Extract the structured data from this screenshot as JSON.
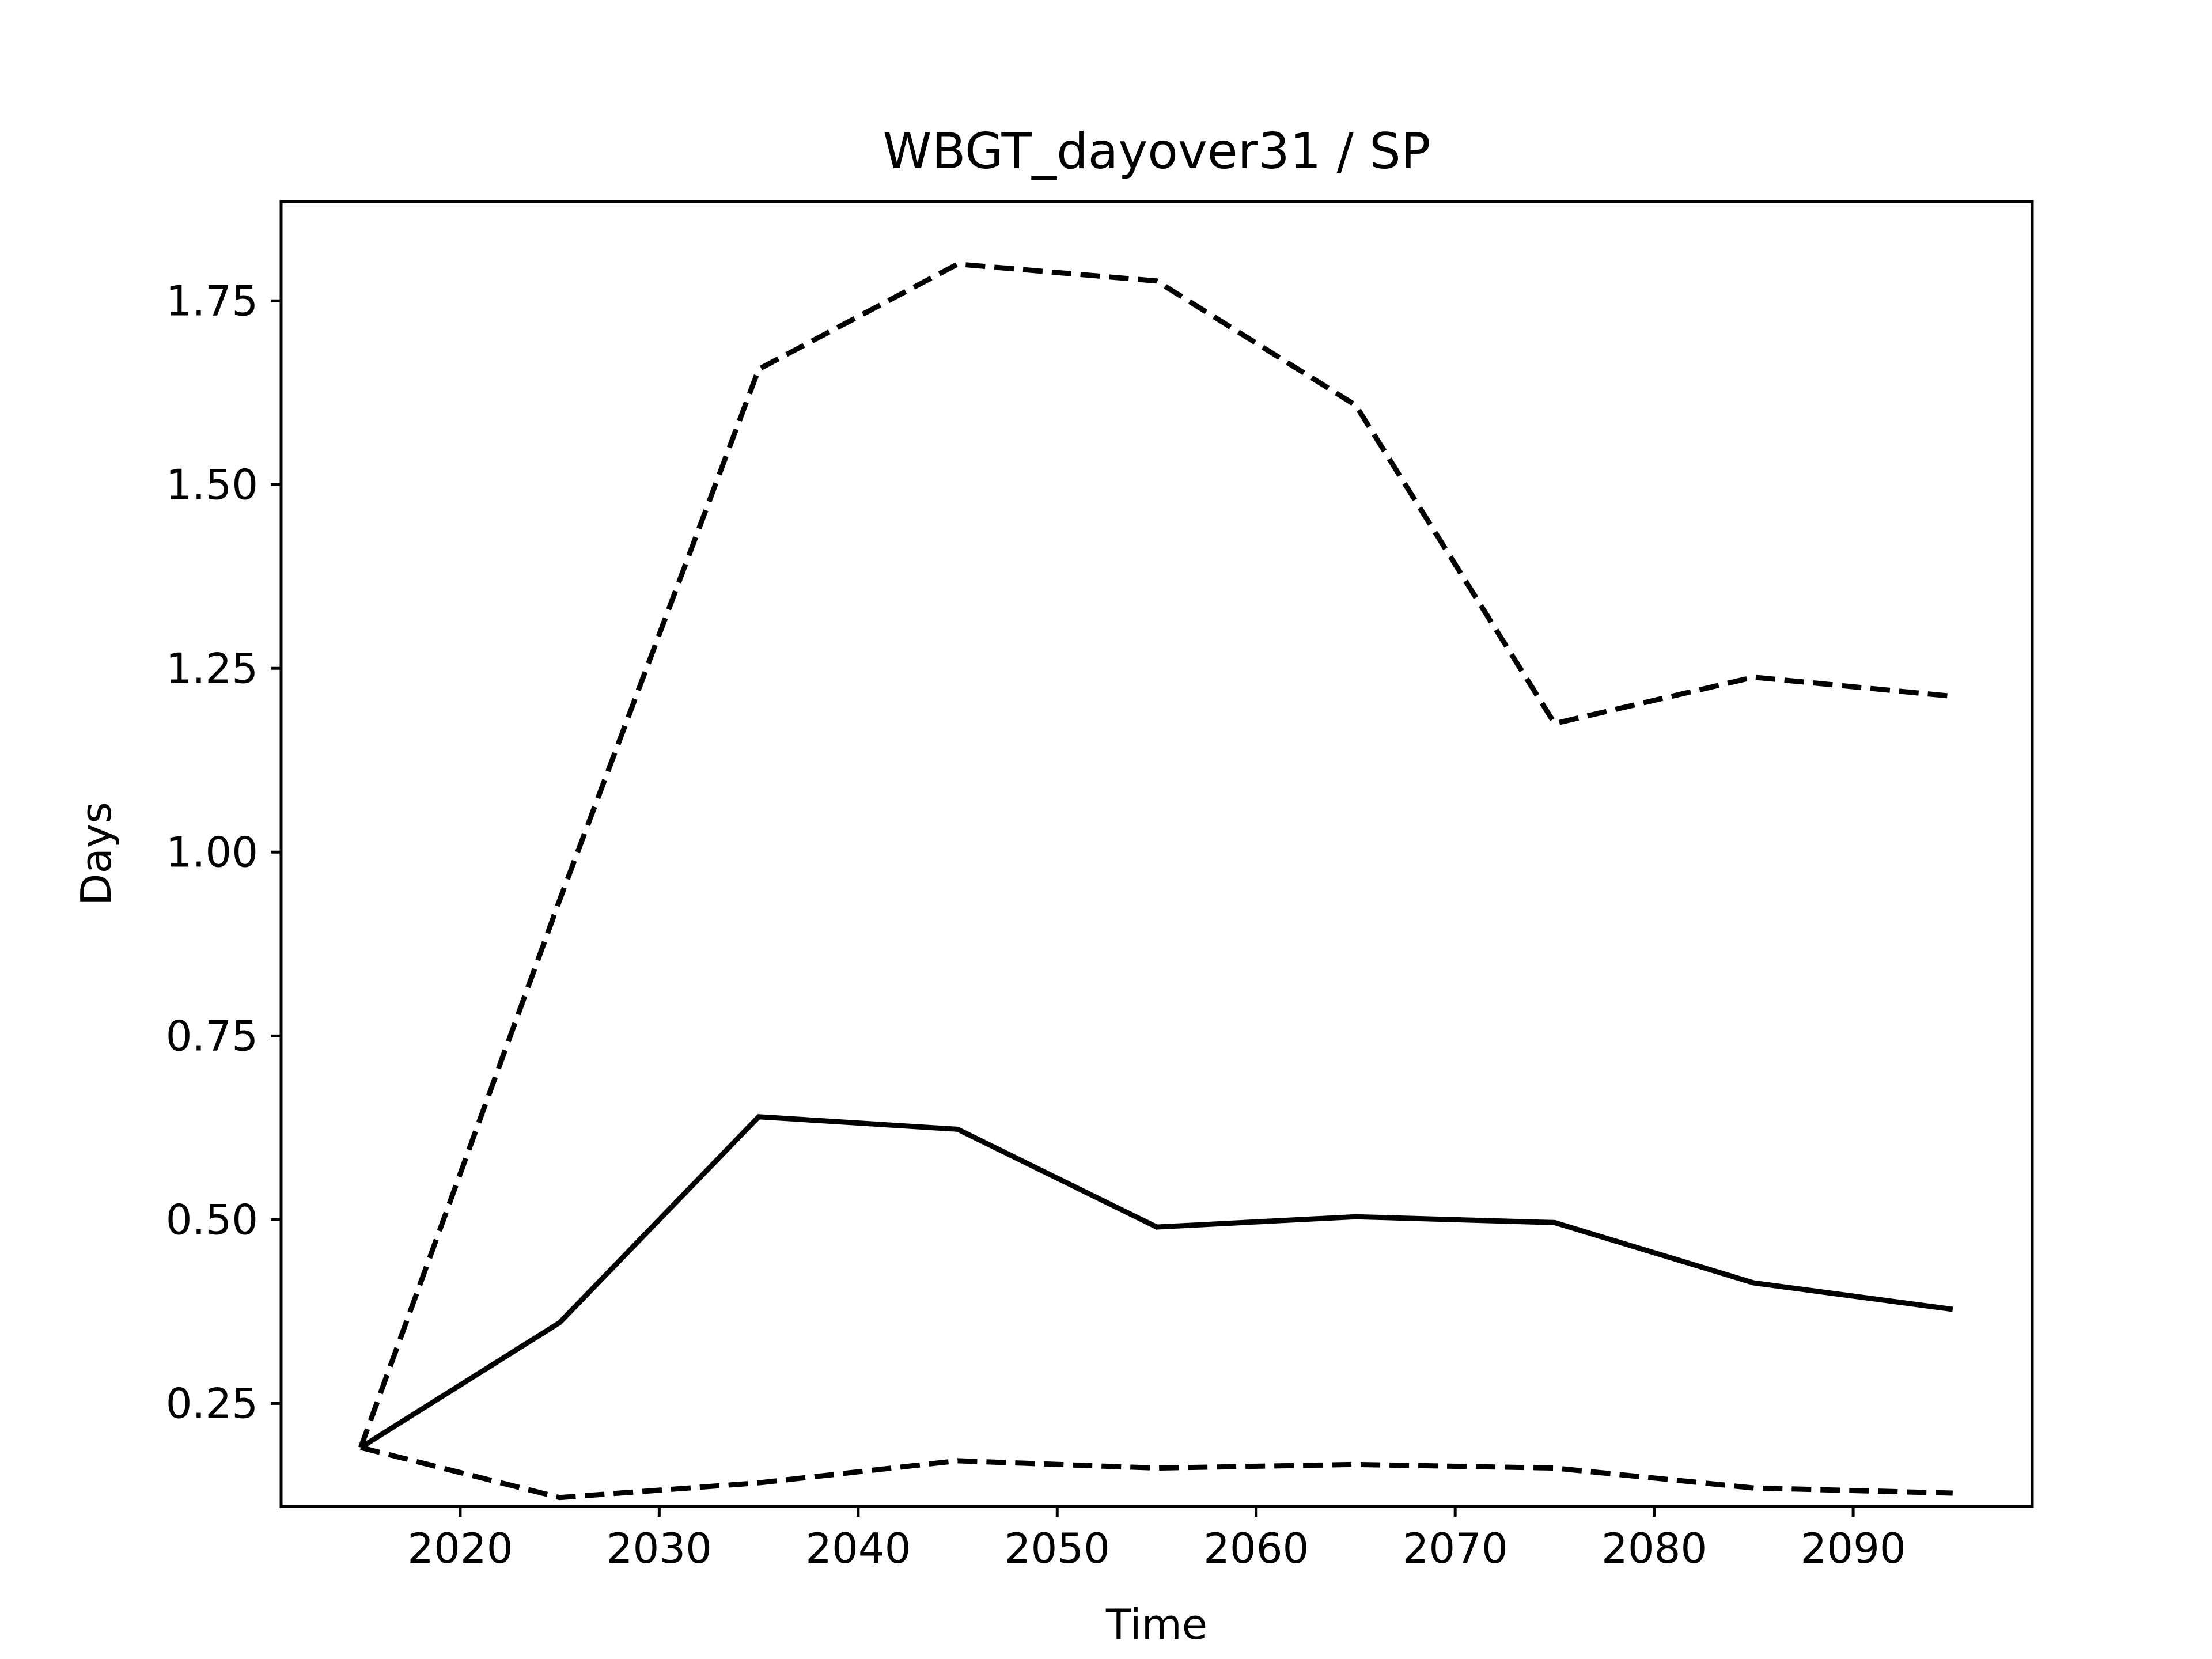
{
  "chart_data": {
    "type": "line",
    "title": "WBGT_dayover31 / SP",
    "xlabel": "Time",
    "ylabel": "Days",
    "xlim": [
      2011,
      2099
    ],
    "ylim": [
      0.11,
      1.885
    ],
    "xticks": [
      2020,
      2030,
      2040,
      2050,
      2060,
      2070,
      2080,
      2090
    ],
    "xtick_labels": [
      "2020",
      "2030",
      "2040",
      "2050",
      "2060",
      "2070",
      "2080",
      "2090"
    ],
    "yticks": [
      0.25,
      0.5,
      0.75,
      1.0,
      1.25,
      1.5,
      1.75
    ],
    "ytick_labels": [
      "0.25",
      "0.50",
      "0.75",
      "1.00",
      "1.25",
      "1.50",
      "1.75"
    ],
    "grid": false,
    "legend": "none",
    "x": [
      2015,
      2025,
      2035,
      2045,
      2055,
      2065,
      2075,
      2085,
      2095
    ],
    "series": [
      {
        "style": "solid",
        "color": "#000000",
        "values": [
          0.19,
          0.36,
          0.64,
          0.623,
          0.49,
          0.504,
          0.496,
          0.414,
          0.378
        ]
      },
      {
        "style": "dashed",
        "color": "#000000",
        "values": [
          0.19,
          0.935,
          1.657,
          1.8,
          1.777,
          1.608,
          1.175,
          1.238,
          1.212
        ]
      },
      {
        "style": "dashed",
        "color": "#000000",
        "values": [
          0.19,
          0.122,
          0.142,
          0.172,
          0.162,
          0.167,
          0.162,
          0.135,
          0.128
        ]
      }
    ]
  }
}
